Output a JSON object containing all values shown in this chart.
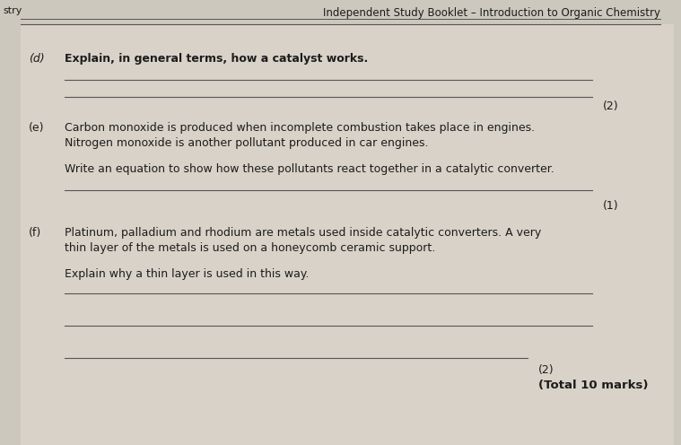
{
  "bg_color": "#cdc8be",
  "content_bg": "#d8d2c8",
  "text_color": "#1c1c1c",
  "line_color": "#555555",
  "fig_w": 7.59,
  "fig_h": 4.96,
  "dpi": 100,
  "header": "Independent Study Booklet – Introduction to Organic Chemistry",
  "header_fontsize": 8.5,
  "left_clip": "stry",
  "sections": [
    {
      "label": "(d)",
      "label_italic": true,
      "question": "Explain, in general terms, how a catalyst works.",
      "question_bold": true,
      "sub_text": null,
      "answer_lines": 2,
      "marks": "(2)",
      "marks_inline": false
    },
    {
      "label": "(e)",
      "label_italic": false,
      "question": "Carbon monoxide is produced when incomplete combustion takes place in engines.\nNitrogen monoxide is another pollutant produced in car engines.",
      "question_bold": false,
      "sub_text": "Write an equation to show how these pollutants react together in a catalytic converter.",
      "answer_lines": 1,
      "marks": "(1)",
      "marks_inline": false
    },
    {
      "label": "(f)",
      "label_italic": false,
      "question": "Platinum, palladium and rhodium are metals used inside catalytic converters. A very\nthin layer of the metals is used on a honeycomb ceramic support.",
      "question_bold": false,
      "sub_text": "Explain why a thin layer is used in this way.",
      "answer_lines": 3,
      "marks": "(2)",
      "marks_inline": true,
      "total": "(Total 10 marks)"
    }
  ]
}
